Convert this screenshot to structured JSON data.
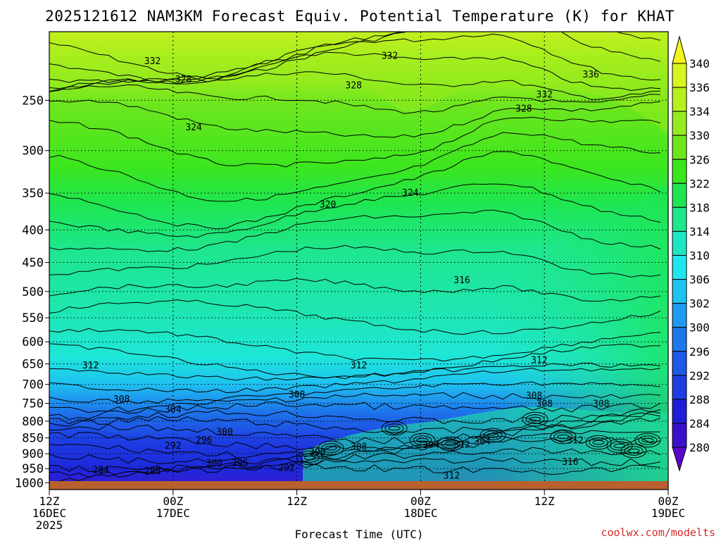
{
  "chart_data": {
    "type": "heatmap",
    "title": "2025121612 NAM3KM Forecast Equiv. Potential Temperature (K) for KHAT",
    "xlabel": "Forecast Time (UTC)",
    "ylabel": "",
    "x_ticks": [
      {
        "hour": 0,
        "line1": "12Z",
        "line2": "16DEC",
        "line3": "2025"
      },
      {
        "hour": 12,
        "line1": "00Z",
        "line2": "17DEC",
        "line3": ""
      },
      {
        "hour": 24,
        "line1": "12Z",
        "line2": "",
        "line3": ""
      },
      {
        "hour": 36,
        "line1": "00Z",
        "line2": "18DEC",
        "line3": ""
      },
      {
        "hour": 48,
        "line1": "12Z",
        "line2": "",
        "line3": ""
      },
      {
        "hour": 60,
        "line1": "00Z",
        "line2": "19DEC",
        "line3": ""
      }
    ],
    "x_range_hours": [
      0,
      60
    ],
    "y_ticks_hpa": [
      "250",
      "300",
      "350",
      "400",
      "450",
      "500",
      "550",
      "600",
      "650",
      "700",
      "750",
      "800",
      "850",
      "900",
      "950",
      "1000"
    ],
    "y_range_hpa": [
      195,
      1025
    ],
    "colorbar_levels": [
      "340",
      "336",
      "334",
      "330",
      "326",
      "322",
      "318",
      "314",
      "310",
      "306",
      "302",
      "300",
      "296",
      "292",
      "288",
      "284",
      "280"
    ],
    "colorbar_colors": [
      "#f5f51e",
      "#d8f51e",
      "#b8f01e",
      "#96eb1e",
      "#6ee61e",
      "#3ce61e",
      "#1ee650",
      "#1ee68c",
      "#1ee6c3",
      "#1ee6f0",
      "#1ec3f0",
      "#1e9bf0",
      "#1e78eb",
      "#1e5ae6",
      "#1e3ce1",
      "#1e1ed7",
      "#3c0fcd",
      "#5a05c8"
    ],
    "contour_labels": [
      {
        "text": "332",
        "hour": 10.0,
        "hpa": 217
      },
      {
        "text": "332",
        "hour": 33.0,
        "hpa": 213
      },
      {
        "text": "336",
        "hour": 52.5,
        "hpa": 228
      },
      {
        "text": "328",
        "hour": 13.0,
        "hpa": 232
      },
      {
        "text": "328",
        "hour": 29.5,
        "hpa": 237
      },
      {
        "text": "332",
        "hour": 48.0,
        "hpa": 245
      },
      {
        "text": "328",
        "hour": 46.0,
        "hpa": 258
      },
      {
        "text": "324",
        "hour": 14.0,
        "hpa": 276
      },
      {
        "text": "324",
        "hour": 35.0,
        "hpa": 350
      },
      {
        "text": "320",
        "hour": 27.0,
        "hpa": 365
      },
      {
        "text": "316",
        "hour": 40.0,
        "hpa": 480
      },
      {
        "text": "312",
        "hour": 4.0,
        "hpa": 654
      },
      {
        "text": "312",
        "hour": 30.0,
        "hpa": 654
      },
      {
        "text": "312",
        "hour": 47.5,
        "hpa": 642
      },
      {
        "text": "308",
        "hour": 7.0,
        "hpa": 739
      },
      {
        "text": "308",
        "hour": 24.0,
        "hpa": 727
      },
      {
        "text": "308",
        "hour": 47.0,
        "hpa": 730
      },
      {
        "text": "308",
        "hour": 48.0,
        "hpa": 752
      },
      {
        "text": "308",
        "hour": 53.5,
        "hpa": 752
      },
      {
        "text": "304",
        "hour": 12.0,
        "hpa": 767
      },
      {
        "text": "300",
        "hour": 17.0,
        "hpa": 832
      },
      {
        "text": "296",
        "hour": 15.0,
        "hpa": 857
      },
      {
        "text": "292",
        "hour": 12.0,
        "hpa": 875
      },
      {
        "text": "308",
        "hour": 30.0,
        "hpa": 878
      },
      {
        "text": "304",
        "hour": 37.0,
        "hpa": 873
      },
      {
        "text": "312",
        "hour": 40.0,
        "hpa": 872
      },
      {
        "text": "304",
        "hour": 42.0,
        "hpa": 862
      },
      {
        "text": "312",
        "hour": 51.0,
        "hpa": 858
      },
      {
        "text": "316",
        "hour": 50.5,
        "hpa": 928
      },
      {
        "text": "300",
        "hour": 26.0,
        "hpa": 895
      },
      {
        "text": "300",
        "hour": 16.0,
        "hpa": 933
      },
      {
        "text": "296",
        "hour": 18.5,
        "hpa": 932
      },
      {
        "text": "292",
        "hour": 23.0,
        "hpa": 948
      },
      {
        "text": "312",
        "hour": 39.0,
        "hpa": 975
      },
      {
        "text": "288",
        "hour": 10.0,
        "hpa": 959
      },
      {
        "text": "284",
        "hour": 5.0,
        "hpa": 956
      }
    ]
  },
  "credit": "coolwx.com/modelts"
}
